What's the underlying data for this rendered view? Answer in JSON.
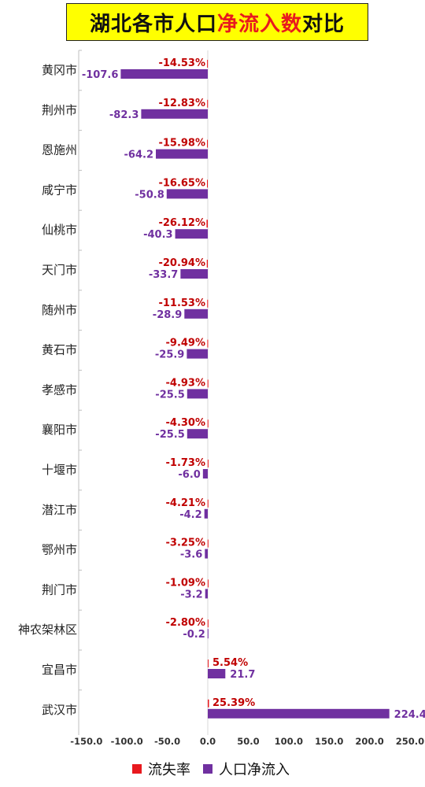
{
  "title": {
    "part1": "湖北各市人口",
    "part2": "净流入数",
    "part3": "对比"
  },
  "chart_data": {
    "type": "bar",
    "orientation": "horizontal",
    "categories": [
      "黄冈市",
      "荆州市",
      "恩施州",
      "咸宁市",
      "仙桃市",
      "天门市",
      "随州市",
      "黄石市",
      "孝感市",
      "襄阳市",
      "十堰市",
      "潜江市",
      "鄂州市",
      "荆门市",
      "神农架林区",
      "宜昌市",
      "武汉市"
    ],
    "series": [
      {
        "name": "流失率",
        "color": "#e8191e",
        "labels": [
          "-14.53%",
          "-12.83%",
          "-15.98%",
          "-16.65%",
          "-26.12%",
          "-20.94%",
          "-11.53%",
          "-9.49%",
          "-4.93%",
          "-4.30%",
          "-1.73%",
          "-4.21%",
          "-3.25%",
          "-1.09%",
          "-2.80%",
          "5.54%",
          "25.39%"
        ],
        "values": [
          -14.53,
          -12.83,
          -15.98,
          -16.65,
          -26.12,
          -20.94,
          -11.53,
          -9.49,
          -4.93,
          -4.3,
          -1.73,
          -4.21,
          -3.25,
          -1.09,
          -2.8,
          5.54,
          25.39
        ]
      },
      {
        "name": "人口净流入",
        "color": "#7030a0",
        "labels": [
          "-107.6",
          "-82.3",
          "-64.2",
          "-50.8",
          "-40.3",
          "-33.7",
          "-28.9",
          "-25.9",
          "-25.5",
          "-25.5",
          "-6.0",
          "-4.2",
          "-3.6",
          "-3.2",
          "-0.2",
          "21.7",
          "224.4"
        ],
        "values": [
          -107.6,
          -82.3,
          -64.2,
          -50.8,
          -40.3,
          -33.7,
          -28.9,
          -25.9,
          -25.5,
          -25.5,
          -6.0,
          -4.2,
          -3.6,
          -3.2,
          -0.2,
          21.7,
          224.4
        ]
      }
    ],
    "xlim": [
      -150,
      250
    ],
    "xticks": [
      "-150.0",
      "-100.0",
      "-50.0",
      "0.0",
      "50.0",
      "100.0",
      "150.0",
      "200.0",
      "250.0"
    ],
    "xtick_values": [
      -150,
      -100,
      -50,
      0,
      50,
      100,
      150,
      200,
      250
    ],
    "legend_position": "bottom"
  }
}
